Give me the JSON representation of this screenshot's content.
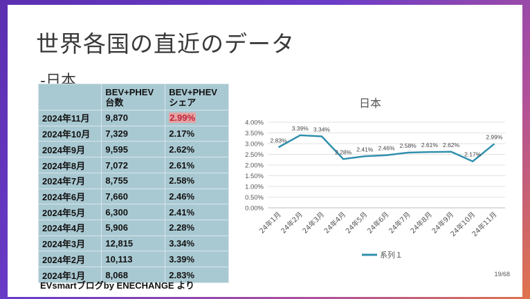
{
  "slide": {
    "title": "世界各国の直近のデータ",
    "subtitle": "-日本",
    "source": "EVsmartブログby ENECHANGE より",
    "page_number": "19/68"
  },
  "table": {
    "headers": [
      "",
      "BEV+PHEV\n台数",
      "BEV+PHEV\nシェア"
    ],
    "rows": [
      {
        "month": "2024年11月",
        "units": "9,870",
        "share": "2.99%",
        "highlight": true
      },
      {
        "month": "2024年10月",
        "units": "7,329",
        "share": "2.17%"
      },
      {
        "month": "2024年9月",
        "units": "9,595",
        "share": "2.62%"
      },
      {
        "month": "2024年8月",
        "units": "7,072",
        "share": "2.61%"
      },
      {
        "month": "2024年7月",
        "units": "8,755",
        "share": "2.58%"
      },
      {
        "month": "2024年6月",
        "units": "7,660",
        "share": "2.46%"
      },
      {
        "month": "2024年5月",
        "units": "6,300",
        "share": "2.41%"
      },
      {
        "month": "2024年4月",
        "units": "5,906",
        "share": "2.28%"
      },
      {
        "month": "2024年3月",
        "units": "12,815",
        "share": "3.34%"
      },
      {
        "month": "2024年2月",
        "units": "10,113",
        "share": "3.39%"
      },
      {
        "month": "2024年1月",
        "units": "8,068",
        "share": "2.83%"
      }
    ],
    "highlight_color": "#e5a3a3"
  },
  "chart_data": {
    "type": "line",
    "title": "日本",
    "categories": [
      "24年1月",
      "24年2月",
      "24年3月",
      "24年4月",
      "24年5月",
      "24年6月",
      "24年7月",
      "24年8月",
      "24年9月",
      "24年10月",
      "24年11月"
    ],
    "series": [
      {
        "name": "系列１",
        "values": [
          2.83,
          3.39,
          3.34,
          2.28,
          2.41,
          2.46,
          2.58,
          2.61,
          2.62,
          2.17,
          2.99
        ],
        "labels": [
          "2.83%",
          "3.39%",
          "3.34%",
          "2.28%",
          "2.41%",
          "2.46%",
          "2.58%",
          "2.61%",
          "2.62%",
          "2.17%",
          "2.99%"
        ],
        "color": "#2f8fad"
      }
    ],
    "y_ticks": [
      "4.00%",
      "3.50%",
      "3.00%",
      "2.50%",
      "2.00%",
      "1.50%",
      "1.00%",
      "0.50%",
      "0.00%"
    ],
    "ylim": [
      0,
      4
    ],
    "grid": true,
    "legend": "bottom"
  }
}
